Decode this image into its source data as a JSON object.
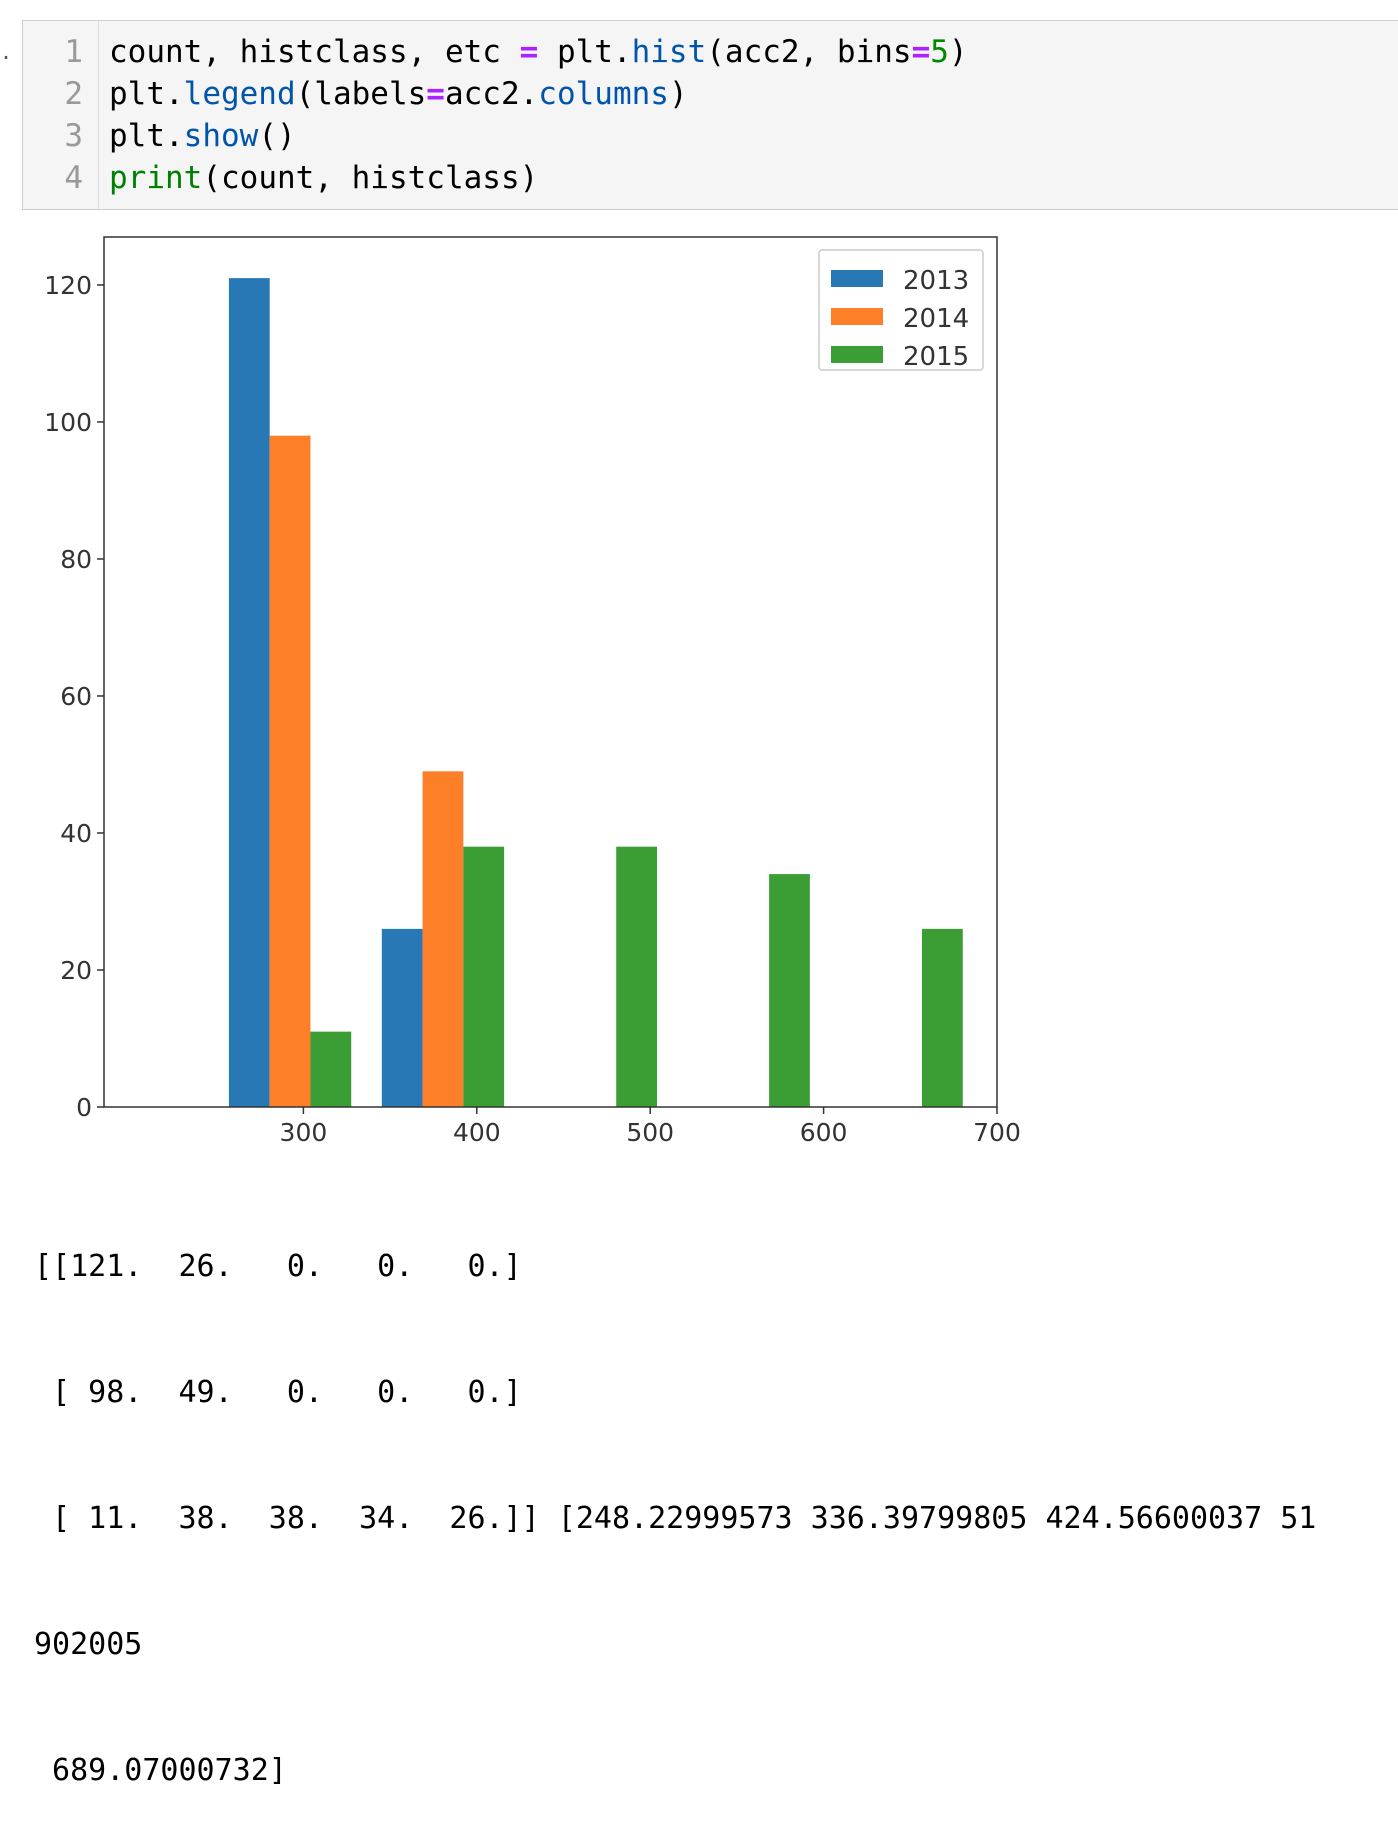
{
  "cell": {
    "line_numbers": [
      "1",
      "2",
      "3",
      "4"
    ],
    "lines": [
      [
        {
          "t": "count, histclass, etc ",
          "c": ""
        },
        {
          "t": "=",
          "c": "tk-op"
        },
        {
          "t": " plt.",
          "c": ""
        },
        {
          "t": "hist",
          "c": "tk-prop"
        },
        {
          "t": "(acc2, bins",
          "c": ""
        },
        {
          "t": "=",
          "c": "tk-op"
        },
        {
          "t": "5",
          "c": "tk-num"
        },
        {
          "t": ")",
          "c": ""
        }
      ],
      [
        {
          "t": "plt.",
          "c": ""
        },
        {
          "t": "legend",
          "c": "tk-prop"
        },
        {
          "t": "(labels",
          "c": ""
        },
        {
          "t": "=",
          "c": "tk-op"
        },
        {
          "t": "acc2.",
          "c": ""
        },
        {
          "t": "columns",
          "c": "tk-prop"
        },
        {
          "t": ")",
          "c": ""
        }
      ],
      [
        {
          "t": "plt.",
          "c": ""
        },
        {
          "t": "show",
          "c": "tk-prop"
        },
        {
          "t": "()",
          "c": ""
        }
      ],
      [
        {
          "t": "print",
          "c": "tk-builtin"
        },
        {
          "t": "(count, histclass)",
          "c": ""
        }
      ]
    ]
  },
  "chart_data": {
    "type": "bar",
    "series": [
      {
        "name": "2013",
        "color": "#2878b5",
        "values": [
          121,
          26,
          0,
          0,
          0
        ]
      },
      {
        "name": "2014",
        "color": "#fd7f28",
        "values": [
          98,
          49,
          0,
          0,
          0
        ]
      },
      {
        "name": "2015",
        "color": "#3a9e34",
        "values": [
          11,
          38,
          38,
          34,
          26
        ]
      }
    ],
    "bin_edges": [
      248.22999573,
      336.39799805,
      424.56600037,
      512.73400269,
      600.902005,
      689.07000732
    ],
    "xlim": [
      185,
      700
    ],
    "ylim": [
      0,
      127
    ],
    "xticks": [
      300,
      400,
      500,
      600,
      700
    ],
    "yticks": [
      0,
      20,
      40,
      60,
      80,
      100,
      120
    ],
    "legend_position": "top-right",
    "title": "",
    "xlabel": "",
    "ylabel": ""
  },
  "output": {
    "lines": [
      "[[121.  26.   0.   0.   0.]",
      " [ 98.  49.   0.   0.   0.]",
      " [ 11.  38.  38.  34.  26.]] [248.22999573 336.39799805 424.56600037 51",
      "902005",
      " 689.07000732]"
    ]
  }
}
